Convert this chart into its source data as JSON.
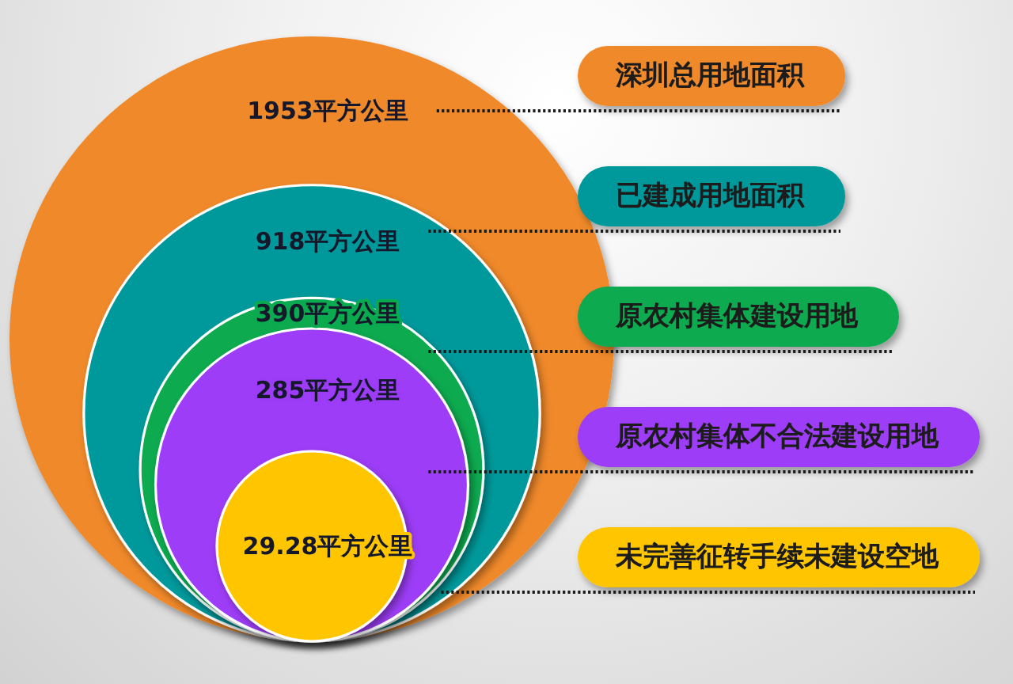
{
  "chart_data": {
    "type": "other",
    "categories": [
      "深圳总用地面积",
      "已建成用地面积",
      "原农村集体建设用地",
      "原农村集体不合法建设用地",
      "未完善征转手续未建设空地"
    ],
    "values": [
      1953,
      918,
      390,
      285,
      29.28
    ],
    "value_labels": [
      "1953平方公里",
      "918平方公里",
      "390平方公里",
      "285平方公里",
      "29.28平方公里"
    ],
    "colors": [
      "#f0892a",
      "#00999b",
      "#0aaa50",
      "#9d3cf7",
      "#ffc600"
    ]
  }
}
